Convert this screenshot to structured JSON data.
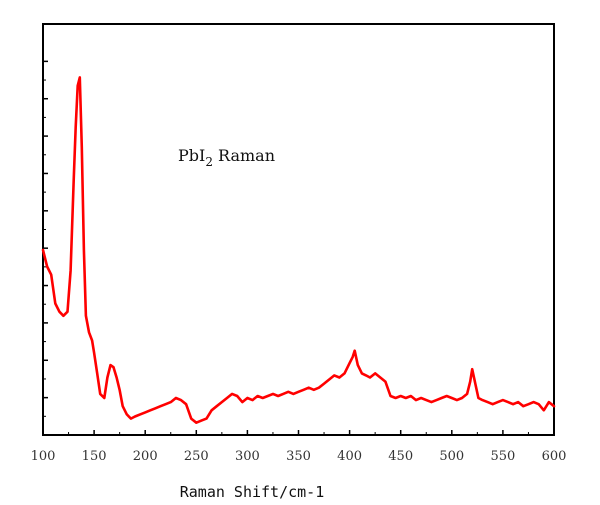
{
  "chart_data": {
    "type": "line",
    "annotation": {
      "text": "PbI",
      "subscript": "2",
      "suffix": " Raman"
    },
    "xlabel": "Raman Shift/cm-1",
    "ylabel": "",
    "xlim": [
      100,
      600
    ],
    "ylim": [
      0,
      1
    ],
    "x_ticks": [
      "100",
      "150",
      "200",
      "250",
      "300",
      "350",
      "400",
      "450",
      "500",
      "550",
      "600"
    ],
    "grid": false,
    "legend": "none",
    "line_color": "#ff0000",
    "series": [
      {
        "x": [
          100,
          104,
          108,
          112,
          116,
          120,
          124,
          127,
          130,
          132,
          134,
          136,
          138,
          140,
          142,
          145,
          148,
          150,
          153,
          156,
          160,
          163,
          166,
          169,
          172,
          175,
          178,
          182,
          186,
          190,
          195,
          200,
          205,
          210,
          215,
          220,
          225,
          230,
          235,
          240,
          245,
          250,
          255,
          260,
          265,
          270,
          275,
          280,
          285,
          290,
          295,
          300,
          305,
          310,
          315,
          320,
          325,
          330,
          335,
          340,
          345,
          350,
          355,
          360,
          365,
          370,
          375,
          380,
          385,
          390,
          395,
          400,
          403,
          405,
          408,
          412,
          416,
          420,
          425,
          430,
          435,
          440,
          445,
          450,
          455,
          460,
          465,
          470,
          475,
          480,
          485,
          490,
          495,
          500,
          505,
          510,
          515,
          518,
          520,
          523,
          526,
          530,
          535,
          540,
          545,
          550,
          555,
          560,
          565,
          570,
          575,
          580,
          585,
          590,
          595,
          600
        ],
        "y": [
          0.45,
          0.41,
          0.39,
          0.32,
          0.3,
          0.29,
          0.3,
          0.4,
          0.62,
          0.75,
          0.85,
          0.87,
          0.7,
          0.45,
          0.29,
          0.25,
          0.23,
          0.2,
          0.15,
          0.1,
          0.09,
          0.14,
          0.17,
          0.165,
          0.14,
          0.11,
          0.07,
          0.05,
          0.04,
          0.045,
          0.05,
          0.055,
          0.06,
          0.065,
          0.07,
          0.075,
          0.08,
          0.09,
          0.085,
          0.075,
          0.04,
          0.03,
          0.035,
          0.04,
          0.06,
          0.07,
          0.08,
          0.09,
          0.1,
          0.095,
          0.08,
          0.09,
          0.085,
          0.095,
          0.09,
          0.095,
          0.1,
          0.095,
          0.1,
          0.105,
          0.1,
          0.105,
          0.11,
          0.115,
          0.11,
          0.115,
          0.125,
          0.135,
          0.145,
          0.14,
          0.15,
          0.175,
          0.19,
          0.205,
          0.17,
          0.15,
          0.145,
          0.14,
          0.15,
          0.14,
          0.13,
          0.095,
          0.09,
          0.095,
          0.09,
          0.095,
          0.085,
          0.09,
          0.085,
          0.08,
          0.085,
          0.09,
          0.095,
          0.09,
          0.085,
          0.09,
          0.1,
          0.13,
          0.16,
          0.125,
          0.09,
          0.085,
          0.08,
          0.075,
          0.08,
          0.085,
          0.08,
          0.075,
          0.08,
          0.07,
          0.075,
          0.08,
          0.075,
          0.06,
          0.08,
          0.07
        ]
      }
    ]
  }
}
